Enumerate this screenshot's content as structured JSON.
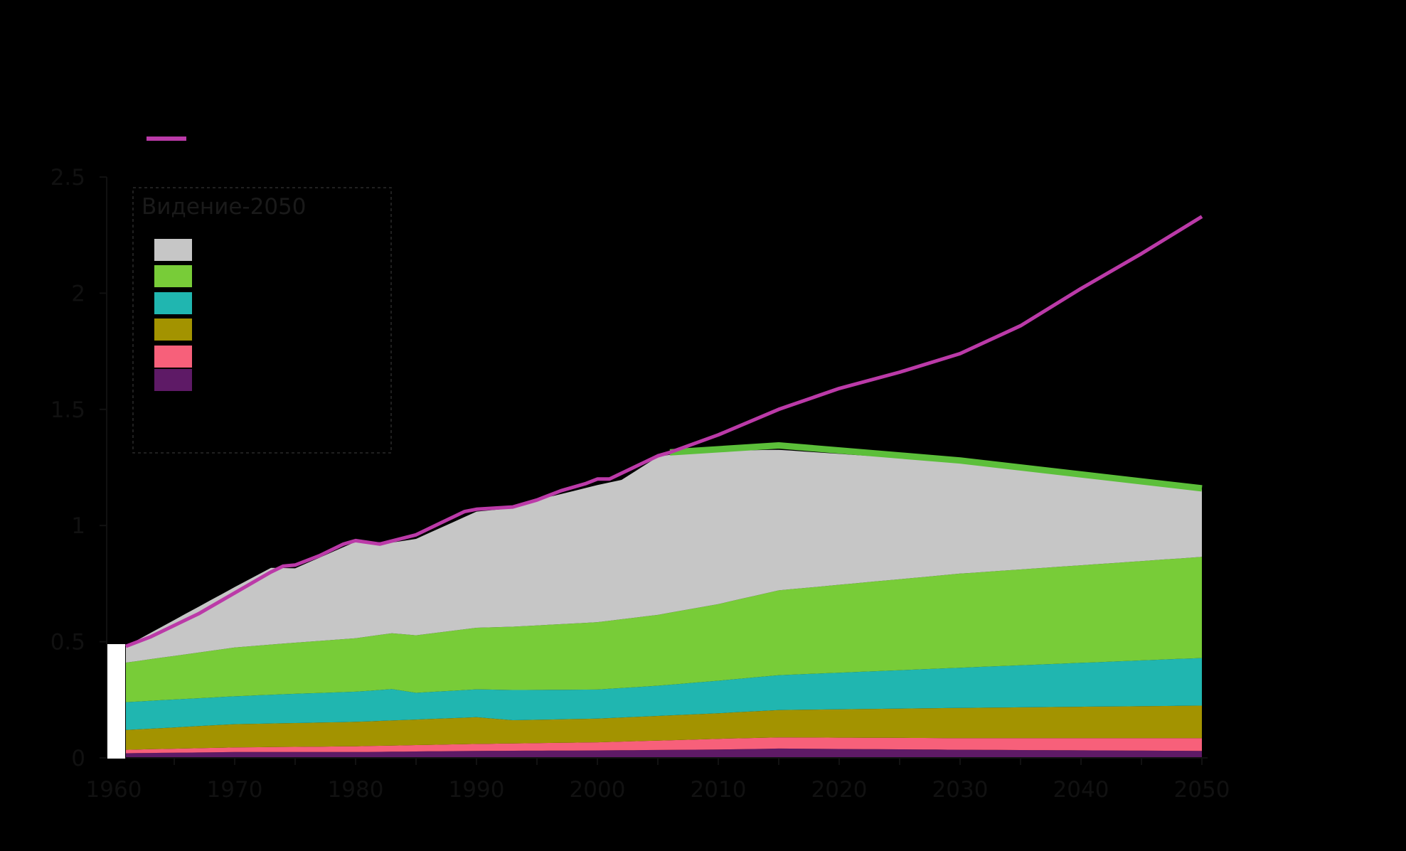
{
  "chart_data": {
    "type": "area",
    "title": "",
    "xlabel": "",
    "ylabel": "",
    "xlim": [
      1960,
      2050
    ],
    "ylim": [
      0,
      2.5
    ],
    "grid": false,
    "x_ticks": [
      1960,
      1970,
      1980,
      1990,
      2000,
      2010,
      2020,
      2030,
      2040,
      2050
    ],
    "x_tick_labels": [
      "1960",
      "1970",
      "1980",
      "1990",
      "2000",
      "2010",
      "2020",
      "2030",
      "2040",
      "2050"
    ],
    "y_ticks": [
      0,
      0.5,
      1,
      1.5,
      2,
      2.5
    ],
    "y_tick_labels": [
      "0",
      "0.5",
      "1",
      "1.5",
      "2",
      "2.5"
    ],
    "legend": {
      "title": "Видение-2050",
      "placement": "top-left",
      "entries": [
        {
          "color": "#c6c6c6"
        },
        {
          "color": "#78cc38"
        },
        {
          "color": "#20b6b0"
        },
        {
          "color": "#a39300"
        },
        {
          "color": "#f7607a"
        },
        {
          "color": "#5e1a66"
        }
      ],
      "line_entry_color": "#bb3aa8"
    },
    "stack_order_bottom_to_top": [
      "s6",
      "s5",
      "s4",
      "s3",
      "s2",
      "s1"
    ],
    "series": [
      {
        "key": "s6",
        "color": "#5e1a66",
        "points": [
          [
            1961,
            0.02
          ],
          [
            1970,
            0.025
          ],
          [
            1980,
            0.025
          ],
          [
            1990,
            0.03
          ],
          [
            2000,
            0.032
          ],
          [
            2010,
            0.036
          ],
          [
            2015,
            0.04
          ],
          [
            2030,
            0.035
          ],
          [
            2050,
            0.03
          ]
        ]
      },
      {
        "key": "s5",
        "color": "#f7607a",
        "points": [
          [
            1961,
            0.015
          ],
          [
            1970,
            0.02
          ],
          [
            1980,
            0.025
          ],
          [
            1990,
            0.03
          ],
          [
            2000,
            0.035
          ],
          [
            2010,
            0.046
          ],
          [
            2015,
            0.048
          ],
          [
            2030,
            0.05
          ],
          [
            2050,
            0.055
          ]
        ]
      },
      {
        "key": "s4",
        "color": "#a39300",
        "points": [
          [
            1961,
            0.085
          ],
          [
            1970,
            0.1
          ],
          [
            1980,
            0.105
          ],
          [
            1990,
            0.115
          ],
          [
            1993,
            0.1
          ],
          [
            2000,
            0.102
          ],
          [
            2010,
            0.11
          ],
          [
            2015,
            0.118
          ],
          [
            2030,
            0.13
          ],
          [
            2050,
            0.14
          ]
        ]
      },
      {
        "key": "s3",
        "color": "#20b6b0",
        "points": [
          [
            1961,
            0.12
          ],
          [
            1970,
            0.12
          ],
          [
            1974,
            0.125
          ],
          [
            1980,
            0.13
          ],
          [
            1983,
            0.135
          ],
          [
            1985,
            0.115
          ],
          [
            1990,
            0.12
          ],
          [
            1993,
            0.13
          ],
          [
            2000,
            0.125
          ],
          [
            2005,
            0.13
          ],
          [
            2010,
            0.14
          ],
          [
            2015,
            0.15
          ],
          [
            2030,
            0.173
          ],
          [
            2050,
            0.205
          ]
        ]
      },
      {
        "key": "s2",
        "color": "#78cc38",
        "points": [
          [
            1961,
            0.17
          ],
          [
            1970,
            0.21
          ],
          [
            1980,
            0.23
          ],
          [
            1990,
            0.265
          ],
          [
            2000,
            0.29
          ],
          [
            2005,
            0.305
          ],
          [
            2010,
            0.33
          ],
          [
            2015,
            0.365
          ],
          [
            2030,
            0.405
          ],
          [
            2050,
            0.435
          ]
        ]
      },
      {
        "key": "s1",
        "color": "#c6c6c6",
        "points": [
          [
            1961,
            0.07
          ],
          [
            1970,
            0.26
          ],
          [
            1973,
            0.33
          ],
          [
            1975,
            0.32
          ],
          [
            1980,
            0.415
          ],
          [
            1983,
            0.39
          ],
          [
            1985,
            0.415
          ],
          [
            1990,
            0.5
          ],
          [
            1993,
            0.51
          ],
          [
            1995,
            0.54
          ],
          [
            2000,
            0.59
          ],
          [
            2002,
            0.6
          ],
          [
            2005,
            0.68
          ],
          [
            2006,
            0.68
          ],
          [
            2010,
            0.66
          ],
          [
            2015,
            0.605
          ],
          [
            2030,
            0.48
          ],
          [
            2050,
            0.29
          ]
        ]
      },
      {
        "key": "green_band",
        "color": "#5cbf3a",
        "type": "line",
        "points": [
          [
            2006,
            1.315
          ],
          [
            2015,
            1.345
          ],
          [
            2030,
            1.28
          ],
          [
            2050,
            1.16
          ]
        ]
      },
      {
        "key": "line",
        "color": "#bb3aa8",
        "type": "line",
        "points": [
          [
            1961,
            0.48
          ],
          [
            1963,
            0.52
          ],
          [
            1965,
            0.57
          ],
          [
            1967,
            0.62
          ],
          [
            1969,
            0.68
          ],
          [
            1971,
            0.74
          ],
          [
            1973,
            0.8
          ],
          [
            1974,
            0.825
          ],
          [
            1975,
            0.83
          ],
          [
            1977,
            0.87
          ],
          [
            1979,
            0.92
          ],
          [
            1980,
            0.935
          ],
          [
            1982,
            0.92
          ],
          [
            1985,
            0.96
          ],
          [
            1987,
            1.01
          ],
          [
            1989,
            1.06
          ],
          [
            1990,
            1.07
          ],
          [
            1993,
            1.08
          ],
          [
            1995,
            1.11
          ],
          [
            1997,
            1.15
          ],
          [
            1999,
            1.18
          ],
          [
            2000,
            1.2
          ],
          [
            2001,
            1.2
          ],
          [
            2003,
            1.25
          ],
          [
            2005,
            1.3
          ],
          [
            2006,
            1.315
          ],
          [
            2010,
            1.39
          ],
          [
            2015,
            1.5
          ],
          [
            2020,
            1.59
          ],
          [
            2025,
            1.66
          ],
          [
            2030,
            1.74
          ],
          [
            2035,
            1.86
          ],
          [
            2040,
            2.02
          ],
          [
            2045,
            2.17
          ],
          [
            2050,
            2.33
          ]
        ]
      }
    ]
  }
}
